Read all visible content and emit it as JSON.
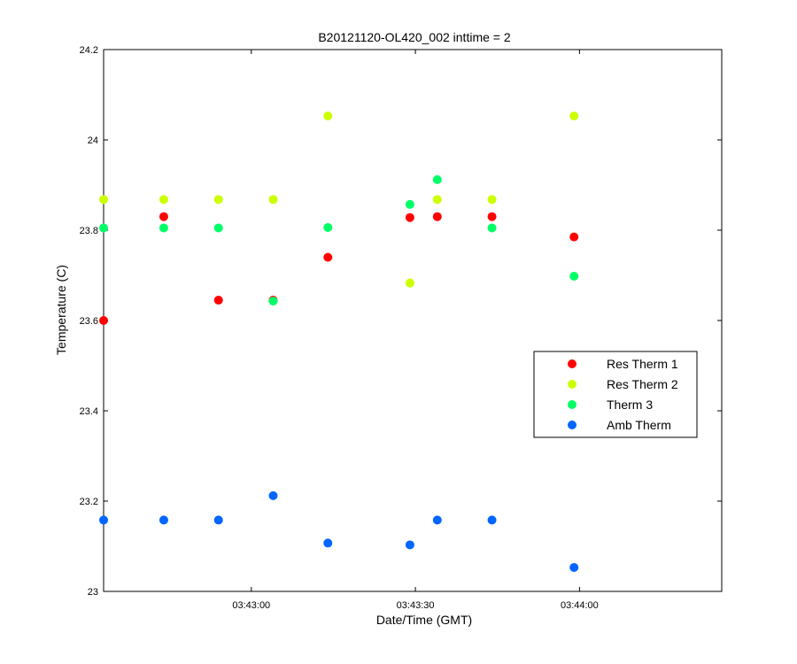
{
  "chart_data": {
    "type": "scatter",
    "title": "B20121120-OL420_002 inttime = 2",
    "xlabel": "Date/Time (GMT)",
    "ylabel": "Temperature (C)",
    "x_unit": "time (GMT, HH:MM:SS)",
    "xlim": [
      "03:42:33",
      "03:44:26"
    ],
    "ylim": [
      23,
      24.2
    ],
    "x_ticks": [
      "03:43:00",
      "03:43:30",
      "03:44:00"
    ],
    "y_ticks": [
      "23",
      "23.2",
      "23.4",
      "23.6",
      "23.8",
      "24",
      "24.2"
    ],
    "legend_position": "middle-right",
    "grid": false,
    "series": [
      {
        "name": "Res Therm 1",
        "color": "#ff0000",
        "points": [
          [
            "03:42:33",
            23.6
          ],
          [
            "03:42:44",
            23.83
          ],
          [
            "03:42:54",
            23.645
          ],
          [
            "03:43:04",
            23.645
          ],
          [
            "03:43:14",
            23.74
          ],
          [
            "03:43:29",
            23.828
          ],
          [
            "03:43:34",
            23.83
          ],
          [
            "03:43:44",
            23.83
          ],
          [
            "03:43:59",
            23.785
          ]
        ]
      },
      {
        "name": "Res Therm 2",
        "color": "#ccff00",
        "points": [
          [
            "03:42:33",
            23.868
          ],
          [
            "03:42:44",
            23.868
          ],
          [
            "03:42:54",
            23.868
          ],
          [
            "03:43:04",
            23.868
          ],
          [
            "03:43:14",
            24.053
          ],
          [
            "03:43:29",
            23.683
          ],
          [
            "03:43:34",
            23.868
          ],
          [
            "03:43:44",
            23.868
          ],
          [
            "03:43:59",
            24.053
          ]
        ]
      },
      {
        "name": "Therm 3",
        "color": "#00ff66",
        "points": [
          [
            "03:42:33",
            23.805
          ],
          [
            "03:42:44",
            23.805
          ],
          [
            "03:42:54",
            23.805
          ],
          [
            "03:43:04",
            23.643
          ],
          [
            "03:43:14",
            23.806
          ],
          [
            "03:43:29",
            23.857
          ],
          [
            "03:43:34",
            23.912
          ],
          [
            "03:43:44",
            23.805
          ],
          [
            "03:43:59",
            23.698
          ]
        ]
      },
      {
        "name": "Amb Therm",
        "color": "#0066ff",
        "points": [
          [
            "03:42:33",
            23.158
          ],
          [
            "03:42:44",
            23.158
          ],
          [
            "03:42:54",
            23.158
          ],
          [
            "03:43:04",
            23.212
          ],
          [
            "03:43:14",
            23.107
          ],
          [
            "03:43:29",
            23.103
          ],
          [
            "03:43:34",
            23.158
          ],
          [
            "03:43:44",
            23.158
          ],
          [
            "03:43:59",
            23.053
          ]
        ]
      }
    ]
  }
}
